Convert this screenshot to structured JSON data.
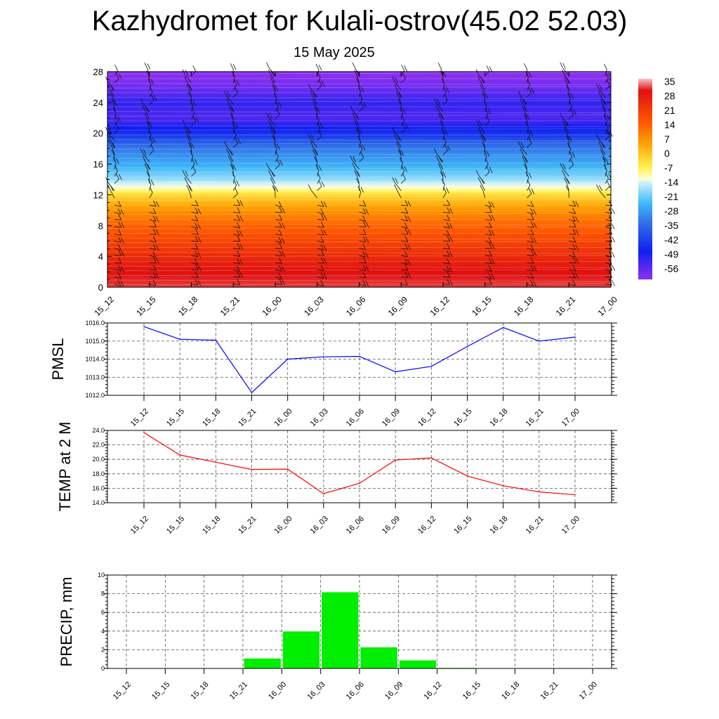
{
  "title": "Kazhydromet for Kulali-ostrov(45.02 52.03)",
  "subtitle": "15 May 2025",
  "colors": {
    "pmsl_line": "#0000ff",
    "temp_line": "#ff0000",
    "precip_bar": "#00ee00"
  },
  "chart_data": [
    {
      "type": "heatmap",
      "title": "",
      "x": [
        "15_12",
        "15_15",
        "15_18",
        "15_21",
        "16_00",
        "16_03",
        "16_06",
        "16_09",
        "16_12",
        "16_15",
        "16_18",
        "16_21",
        "17_00"
      ],
      "yticks": [
        0,
        4,
        8,
        12,
        16,
        20,
        24,
        28
      ],
      "ylim": [
        0,
        28
      ],
      "colorbar": {
        "labels": [
          "35",
          "28",
          "21",
          "14",
          "7",
          "0",
          "-7",
          "-14",
          "-21",
          "-28",
          "-35",
          "-42",
          "-49",
          "-56"
        ],
        "range": [
          -60,
          38
        ]
      },
      "temperature_profile": [
        {
          "level": 0,
          "value": 32
        },
        {
          "level": 2,
          "value": 30
        },
        {
          "level": 4,
          "value": 25
        },
        {
          "level": 6,
          "value": 20
        },
        {
          "level": 8,
          "value": 15
        },
        {
          "level": 10,
          "value": 8
        },
        {
          "level": 12,
          "value": -2
        },
        {
          "level": 13,
          "value": -12
        },
        {
          "level": 14,
          "value": -22
        },
        {
          "level": 16,
          "value": -32
        },
        {
          "level": 18,
          "value": -40
        },
        {
          "level": 20,
          "value": -50
        },
        {
          "level": 22,
          "value": -56
        },
        {
          "level": 24,
          "value": -54
        },
        {
          "level": 26,
          "value": -58
        },
        {
          "level": 28,
          "value": -60
        }
      ],
      "wind_barbs": "present at each time step and level"
    },
    {
      "type": "line",
      "ylabel": "PMSL",
      "x": [
        "15_12",
        "15_15",
        "15_18",
        "15_21",
        "16_00",
        "16_03",
        "16_06",
        "16_09",
        "16_12",
        "16_15",
        "16_18",
        "16_21",
        "17_00"
      ],
      "values": [
        1015.8,
        1015.1,
        1015.05,
        1012.15,
        1014.0,
        1014.13,
        1014.15,
        1013.3,
        1013.6,
        1014.7,
        1015.75,
        1015.0,
        1015.22
      ],
      "ylim": [
        1012.0,
        1016.0
      ],
      "yticks": [
        "1012.0",
        "1013.0",
        "1014.0",
        "1015.0",
        "1016.0"
      ],
      "grid": true
    },
    {
      "type": "line",
      "ylabel": "TEMP at 2 M",
      "x": [
        "15_12",
        "15_15",
        "15_18",
        "15_21",
        "16_00",
        "16_03",
        "16_06",
        "16_09",
        "16_12",
        "16_15",
        "16_18",
        "16_21",
        "17_00"
      ],
      "values": [
        23.7,
        20.6,
        19.6,
        18.6,
        18.65,
        15.25,
        16.7,
        19.9,
        20.2,
        17.7,
        16.35,
        15.5,
        15.1
      ],
      "ylim": [
        14.0,
        24.0
      ],
      "yticks": [
        "14.0",
        "16.0",
        "18.0",
        "20.0",
        "22.0",
        "24.0"
      ],
      "grid": true
    },
    {
      "type": "bar",
      "ylabel": "PRECIP, mm",
      "x": [
        "15_12",
        "15_15",
        "15_18",
        "15_21",
        "16_00",
        "16_03",
        "16_06",
        "16_09",
        "16_12",
        "16_15",
        "16_18",
        "16_21",
        "17_00"
      ],
      "values": [
        0,
        0,
        0,
        0,
        1.1,
        4.0,
        8.2,
        2.3,
        0.9,
        0.1,
        0,
        0,
        0
      ],
      "ylim": [
        0,
        10
      ],
      "yticks": [
        "0",
        "2",
        "4",
        "6",
        "8",
        "10"
      ],
      "grid": true
    }
  ]
}
